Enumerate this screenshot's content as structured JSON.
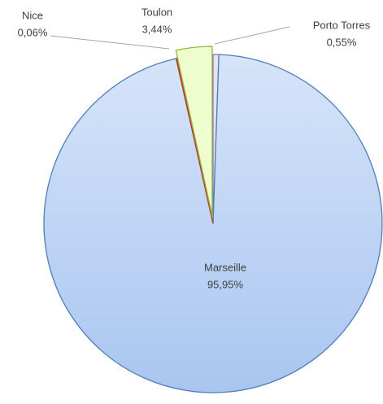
{
  "chart_data": {
    "type": "pie",
    "categories": [
      "Porto Torres",
      "Marseille",
      "Nice",
      "Toulon"
    ],
    "values": [
      0.55,
      95.95,
      0.06,
      3.44
    ],
    "value_labels": [
      "0,55%",
      "95,95%",
      "0,06%",
      "3,44%"
    ],
    "colors": [
      "#e8e2f2",
      "#c6d9f6",
      "#e46262",
      "#effccd"
    ],
    "stroke_colors": [
      "#8e75b5",
      "#4f7db8",
      "#c0392b",
      "#8dbd3a"
    ],
    "exploded": [
      false,
      false,
      false,
      true
    ]
  }
}
